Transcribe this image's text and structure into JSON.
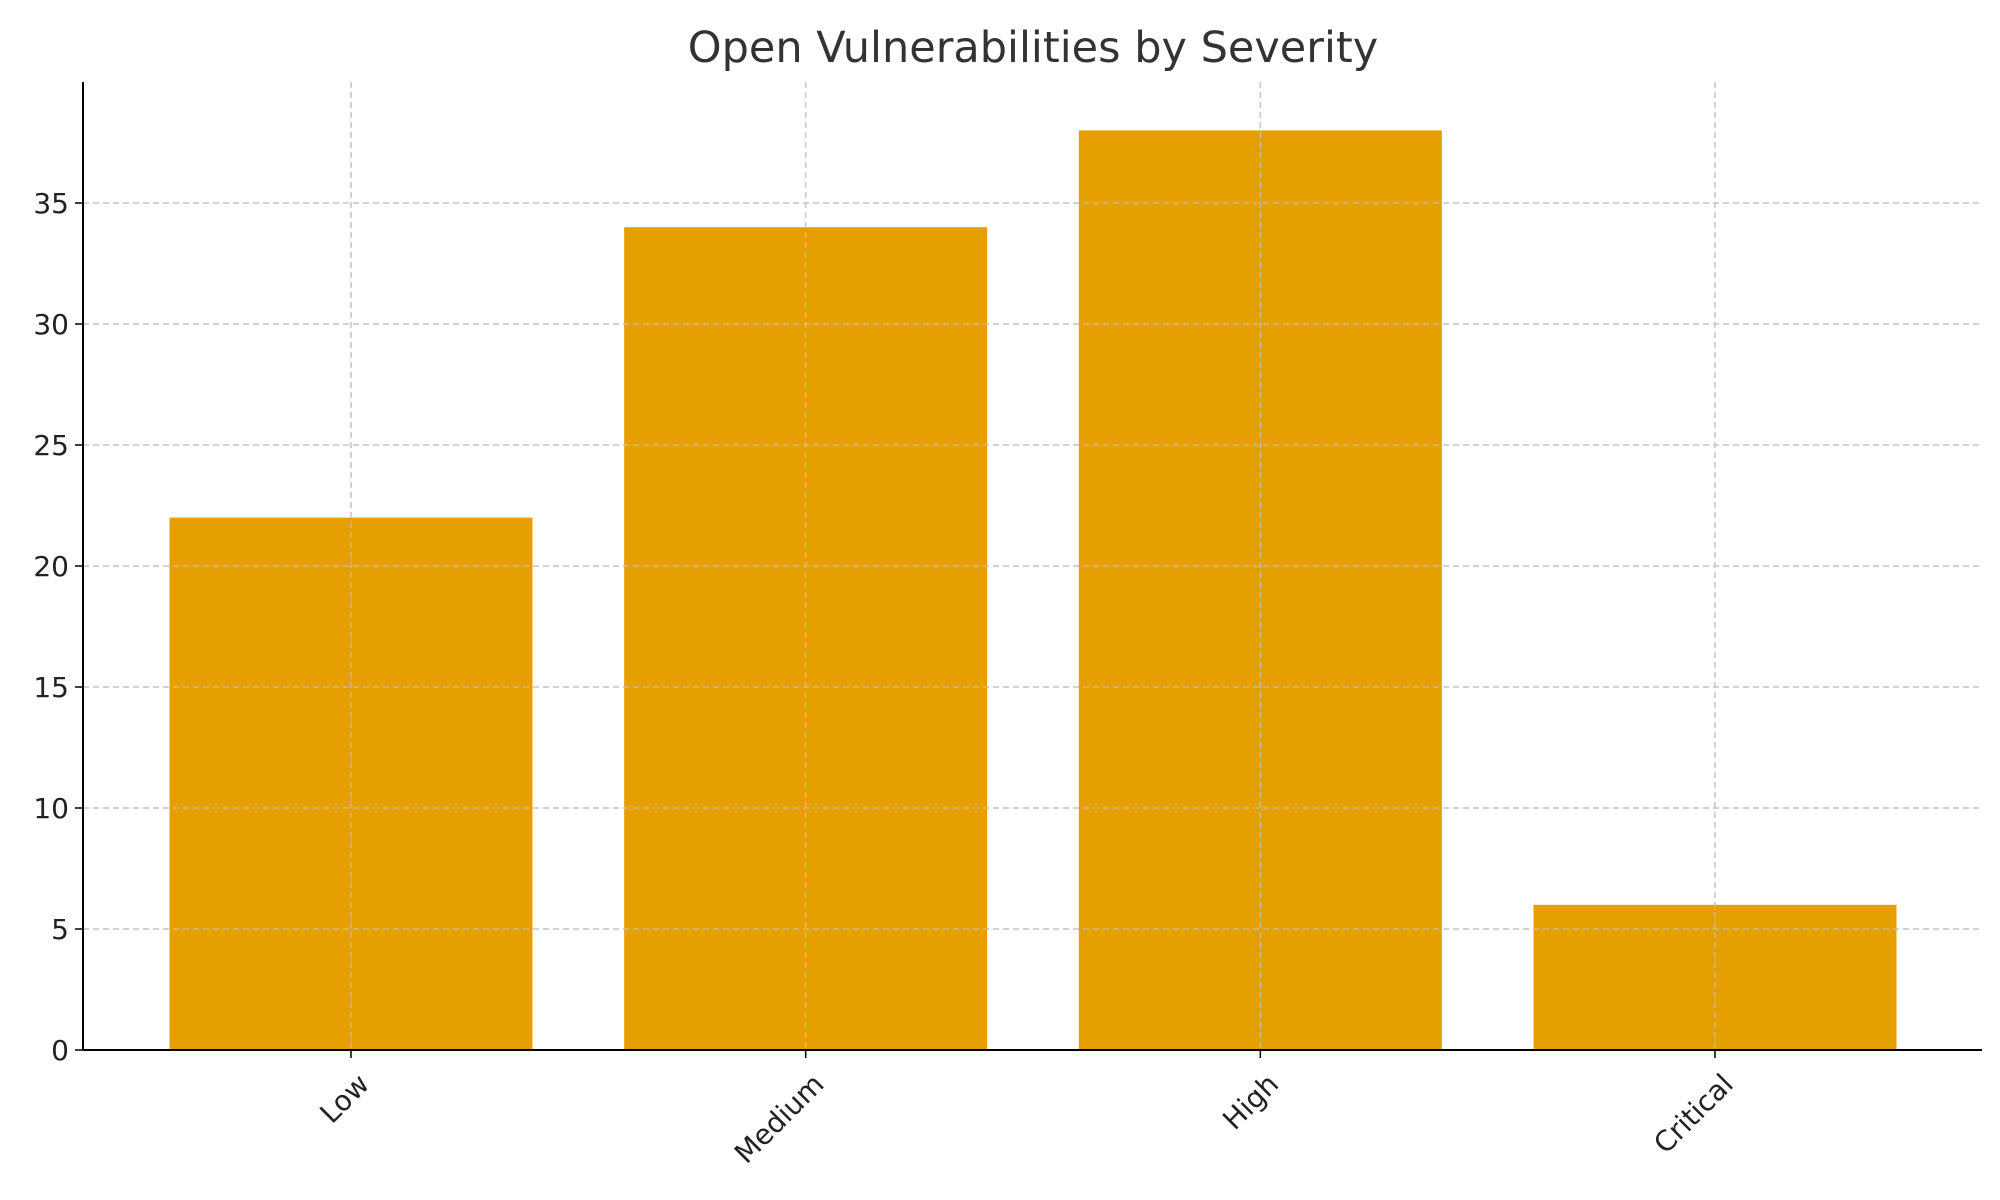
{
  "chart_data": {
    "type": "bar",
    "title": "Open Vulnerabilities by Severity",
    "xlabel": "",
    "ylabel": "",
    "categories": [
      "Low",
      "Medium",
      "High",
      "Critical"
    ],
    "values": [
      22,
      34,
      38,
      6
    ],
    "ylim": [
      0,
      40
    ],
    "yticks": [
      "0",
      "5",
      "10",
      "15",
      "20",
      "25",
      "30",
      "35"
    ],
    "grid": true,
    "bar_color": "#E69F00",
    "gridline_color": "#c8c8c8",
    "axis_color": "#000000"
  }
}
